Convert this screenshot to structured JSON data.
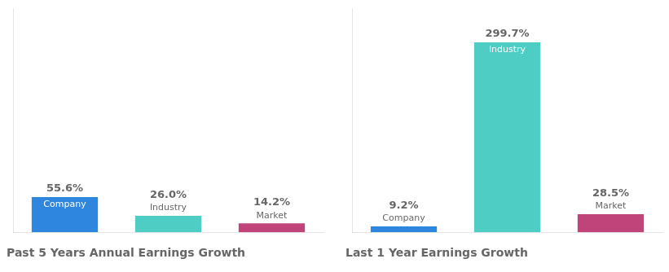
{
  "chart_data": [
    {
      "type": "bar",
      "title": "Past 5 Years Annual Earnings Growth",
      "categories": [
        "Company",
        "Industry",
        "Market"
      ],
      "values": [
        55.6,
        26.0,
        14.2
      ],
      "value_labels": [
        "55.6%",
        "26.0%",
        "14.2%"
      ],
      "colors": [
        "#2e86de",
        "#4ecdc4",
        "#c0447a"
      ],
      "ylim": [
        0,
        353.646
      ],
      "tick_labels": false,
      "grid": false,
      "data_labels": true
    },
    {
      "type": "bar",
      "title": "Last 1 Year Earnings Growth",
      "categories": [
        "Company",
        "Industry",
        "Market"
      ],
      "values": [
        9.2,
        299.7,
        28.5
      ],
      "value_labels": [
        "9.2%",
        "299.7%",
        "28.5%"
      ],
      "colors": [
        "#2e86de",
        "#4ecdc4",
        "#c0447a"
      ],
      "ylim": [
        0,
        353.646
      ],
      "tick_labels": false,
      "grid": false,
      "data_labels": true
    }
  ]
}
